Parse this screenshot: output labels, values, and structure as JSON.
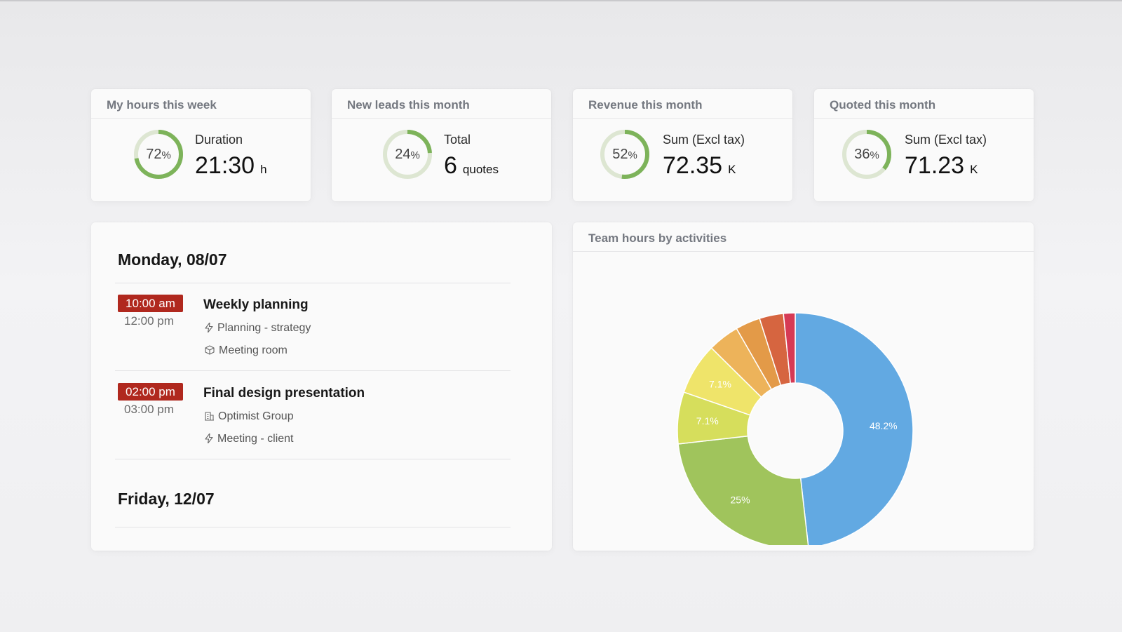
{
  "kpis": [
    {
      "title": "My hours this week",
      "percent": 72,
      "label": "Duration",
      "value": "21:30",
      "unit": "h"
    },
    {
      "title": "New leads this month",
      "percent": 24,
      "label": "Total",
      "value": "6",
      "unit": "quotes"
    },
    {
      "title": "Revenue this month",
      "percent": 52,
      "label": "Sum (Excl tax)",
      "value": "72.35",
      "unit": "K"
    },
    {
      "title": "Quoted this month",
      "percent": 36,
      "label": "Sum (Excl tax)",
      "value": "71.23",
      "unit": "K"
    }
  ],
  "percent_sign": "%",
  "agenda": {
    "days": [
      {
        "heading": "Monday, 08/07",
        "events": [
          {
            "start": "10:00 am",
            "end": "12:00 pm",
            "title": "Weekly planning",
            "meta": [
              {
                "icon": "lightning-icon",
                "text": "Planning - strategy"
              },
              {
                "icon": "box-icon",
                "text": "Meeting room"
              }
            ]
          },
          {
            "start": "02:00 pm",
            "end": "03:00 pm",
            "title": "Final design presentation",
            "meta": [
              {
                "icon": "building-icon",
                "text": "Optimist Group"
              },
              {
                "icon": "lightning-icon",
                "text": "Meeting - client"
              }
            ]
          }
        ]
      },
      {
        "heading": "Friday, 12/07",
        "events": []
      }
    ]
  },
  "team_hours": {
    "title": "Team hours by activities"
  },
  "colors": {
    "ring_fill": "#7db35a",
    "ring_track": "#dde6d2",
    "event_time_bg": "#b0281e"
  },
  "chart_data": {
    "type": "pie",
    "donut": true,
    "slices": [
      {
        "value": 48.2,
        "label": "48.2%",
        "color": "#62a9e2"
      },
      {
        "value": 25.0,
        "label": "25%",
        "color": "#a0c45c"
      },
      {
        "value": 7.1,
        "label": "7.1%",
        "color": "#d6de5c"
      },
      {
        "value": 7.1,
        "label": "7.1%",
        "color": "#efe46a"
      },
      {
        "value": 4.3,
        "label": "",
        "color": "#edb35a"
      },
      {
        "value": 3.4,
        "label": "",
        "color": "#e39a48"
      },
      {
        "value": 3.3,
        "label": "",
        "color": "#d66540"
      },
      {
        "value": 1.6,
        "label": "",
        "color": "#d63a55"
      }
    ]
  }
}
